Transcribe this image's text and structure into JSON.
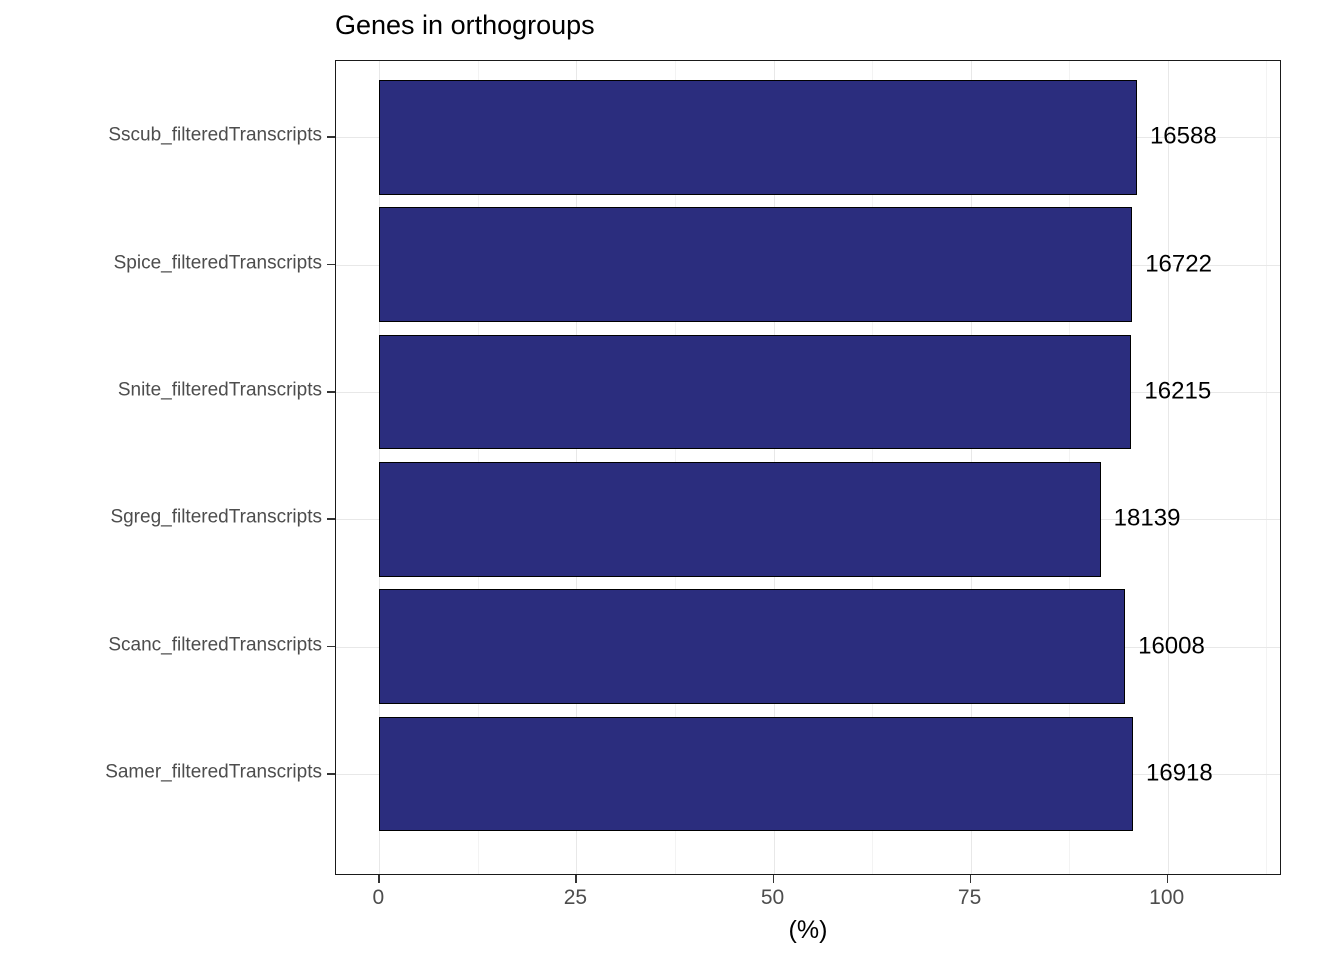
{
  "chart_data": {
    "type": "bar",
    "orientation": "horizontal",
    "title": "Genes in orthogroups",
    "xlabel": "(%)",
    "ylabel": "",
    "categories_top_to_bottom": [
      "Sscub_filteredTranscripts",
      "Spice_filteredTranscripts",
      "Snite_filteredTranscripts",
      "Sgreg_filteredTranscripts",
      "Scanc_filteredTranscripts",
      "Samer_filteredTranscripts"
    ],
    "values_percent": [
      96.1,
      95.5,
      95.4,
      91.5,
      94.6,
      95.6
    ],
    "bar_labels": [
      "16588",
      "16722",
      "16215",
      "18139",
      "16008",
      "16918"
    ],
    "x_major_ticks": [
      0,
      25,
      50,
      75,
      100
    ],
    "x_minor_ticks": [
      12.5,
      37.5,
      62.5,
      87.5,
      112.5
    ],
    "xlim": [
      -5.5,
      114.5
    ],
    "bar_width_fraction": 0.9,
    "grid": true,
    "legend": false,
    "colors": {
      "bar_fill": "#2b2d7e",
      "bar_border": "#000000",
      "grid_major": "#e8e8e8",
      "grid_minor": "#f3f3f3",
      "panel_border": "#1a1a1a",
      "axis_text": "#4d4d4d",
      "title_text": "#000000"
    }
  }
}
